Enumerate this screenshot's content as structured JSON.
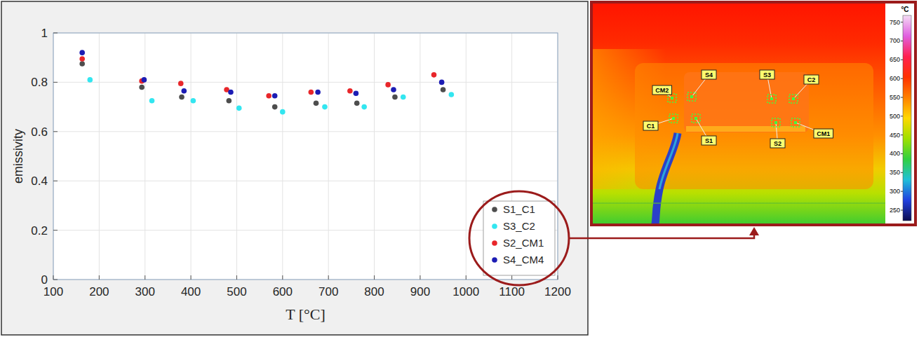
{
  "chart_data": {
    "type": "scatter",
    "x_label": "T [°C]",
    "y_label": "emissivity",
    "xlim": [
      100,
      1200
    ],
    "ylim": [
      0,
      1
    ],
    "xticks": [
      100,
      200,
      300,
      400,
      500,
      600,
      700,
      800,
      900,
      1000,
      1100,
      1200
    ],
    "yticks": [
      0,
      0.2,
      0.4,
      0.6,
      0.8,
      1
    ],
    "grid": true,
    "legend": "lower right",
    "marker": "circle",
    "series": [
      {
        "name": "S1_C1",
        "color": "#4d4d4d",
        "x": [
          163,
          293,
          380,
          483,
          583,
          673,
          762,
          845,
          950
        ],
        "values": [
          0.875,
          0.78,
          0.74,
          0.725,
          0.7,
          0.715,
          0.715,
          0.74,
          0.77
        ]
      },
      {
        "name": "S3_C2",
        "color": "#33e6f0",
        "x": [
          180,
          315,
          405,
          505,
          600,
          692,
          778,
          863,
          968
        ],
        "values": [
          0.81,
          0.725,
          0.725,
          0.695,
          0.68,
          0.7,
          0.7,
          0.74,
          0.75
        ]
      },
      {
        "name": "S2_CM1",
        "color": "#e8262a",
        "x": [
          163,
          293,
          378,
          478,
          570,
          662,
          747,
          830,
          930
        ],
        "values": [
          0.895,
          0.805,
          0.795,
          0.77,
          0.745,
          0.76,
          0.765,
          0.79,
          0.83
        ]
      },
      {
        "name": "S4_CM4",
        "color": "#1c1cb4",
        "x": [
          163,
          298,
          385,
          487,
          583,
          677,
          760,
          842,
          947
        ],
        "values": [
          0.92,
          0.81,
          0.765,
          0.76,
          0.745,
          0.76,
          0.755,
          0.77,
          0.8
        ]
      }
    ]
  },
  "thermal_image": {
    "colorbar": {
      "unit": "°C",
      "range": [
        222,
        768
      ],
      "ticks": [
        750,
        700,
        650,
        600,
        550,
        500,
        450,
        400,
        350,
        300,
        250
      ]
    },
    "point_labels": [
      "CM2",
      "S4",
      "S3",
      "C2",
      "C1",
      "S1",
      "S2",
      "CM1"
    ]
  }
}
